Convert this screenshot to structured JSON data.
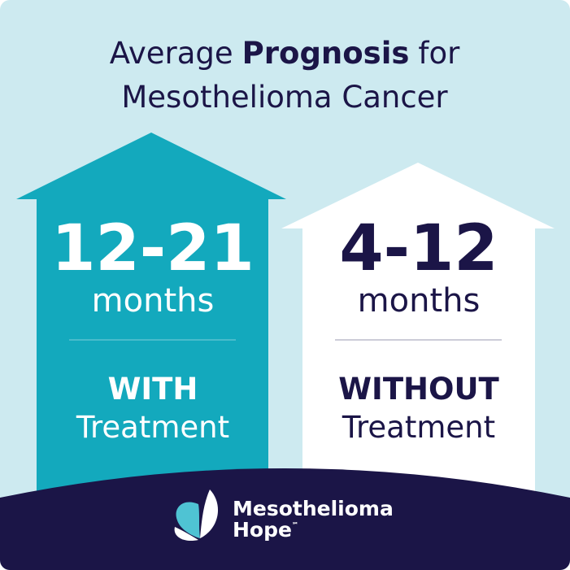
{
  "title": {
    "line1_before": "Average",
    "line1_bold": "Prognosis",
    "line1_after": "for",
    "line2": "Mesothelioma Cancer"
  },
  "panels": [
    {
      "value": "12-21",
      "unit": "months",
      "label_bold": "WITH",
      "label": "Treatment"
    },
    {
      "value": "4-12",
      "unit": "months",
      "label_bold": "WITHOUT",
      "label": "Treatment"
    }
  ],
  "logo": {
    "line1": "Mesothelioma",
    "line2": "Hope",
    "mark": "℠"
  }
}
